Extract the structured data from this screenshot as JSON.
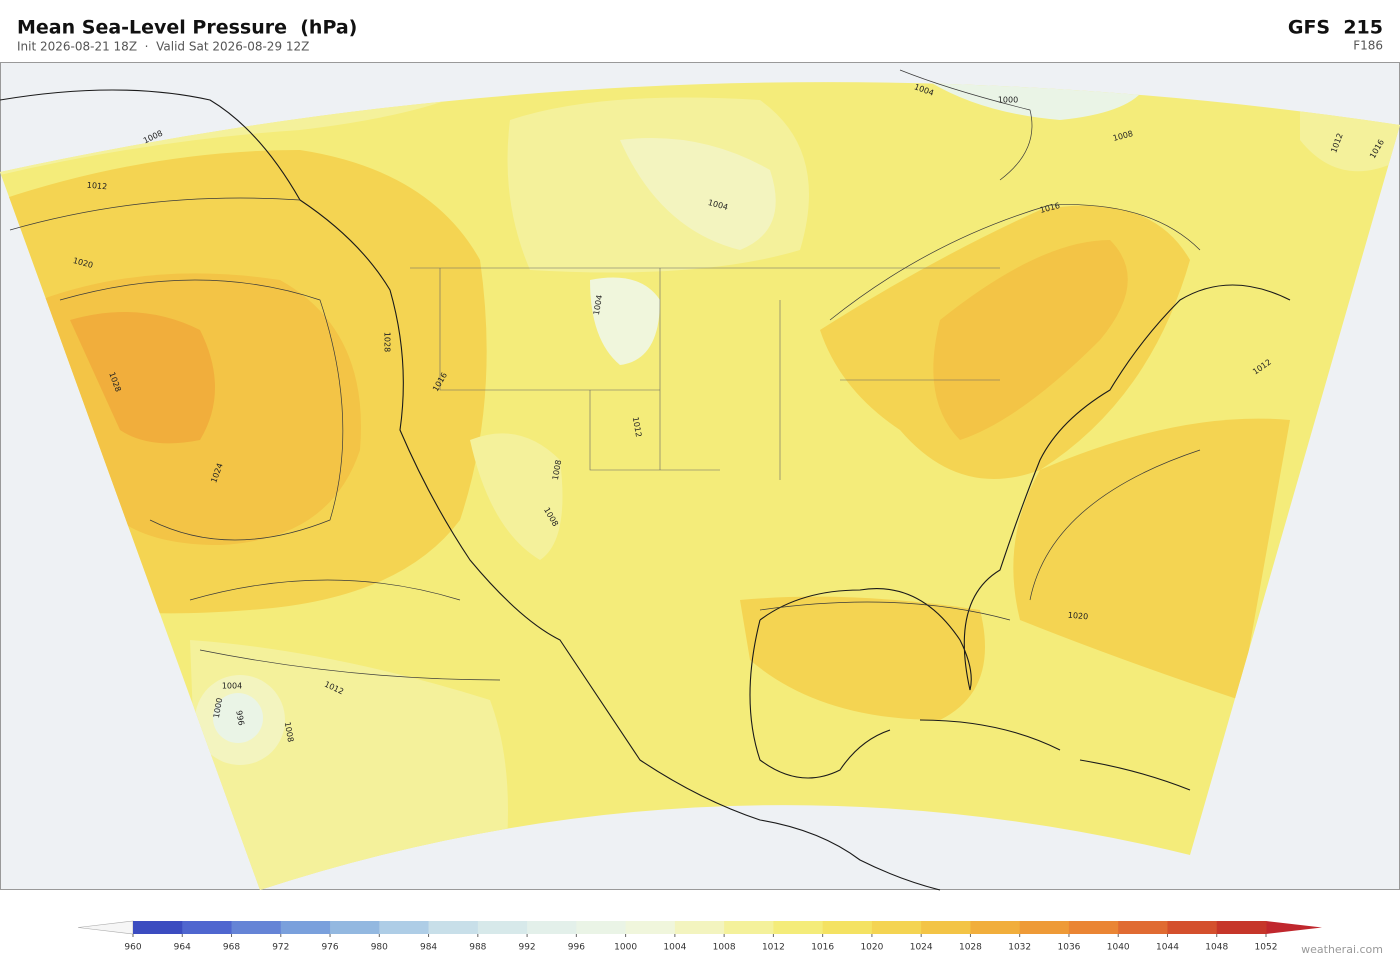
{
  "header": {
    "title": "Mean Sea-Level Pressure  (hPa)",
    "subtitle": "Init 2026-08-21 18Z  ·  Valid Sat 2026-08-29 12Z",
    "model": "GFS  215",
    "forecast_hour": "F186"
  },
  "map": {
    "contour_labels": [
      1008,
      1012,
      1020,
      1028,
      1024,
      1028,
      1016,
      1004,
      1012,
      1008,
      1008,
      1004,
      1004,
      1000,
      1008,
      1016,
      1012,
      1016,
      1012,
      1020,
      1012,
      1004,
      1000,
      996,
      1008
    ]
  },
  "colorbar": {
    "ticks": [
      960,
      964,
      968,
      972,
      976,
      980,
      984,
      988,
      992,
      996,
      1000,
      1004,
      1008,
      1012,
      1016,
      1020,
      1024,
      1028,
      1032,
      1036,
      1040,
      1044,
      1048,
      1052
    ],
    "colors": [
      "#3b4cc0",
      "#4f66cf",
      "#6584d6",
      "#7aa0dc",
      "#93b8e0",
      "#aecde6",
      "#c8dfe9",
      "#d7e9ea",
      "#e3f0ea",
      "#eaf4e6",
      "#f0f6dc",
      "#f3f4bf",
      "#f4f19b",
      "#f4ec7a",
      "#f4e262",
      "#f4d452",
      "#f3c446",
      "#f1ae3c",
      "#ee9a37",
      "#ea8534",
      "#e06b32",
      "#d4502d",
      "#c6362a"
    ],
    "under_color": "#f6f6f6",
    "over_color": "#c0272d"
  },
  "footer": {
    "credit": "weatherai.com"
  }
}
